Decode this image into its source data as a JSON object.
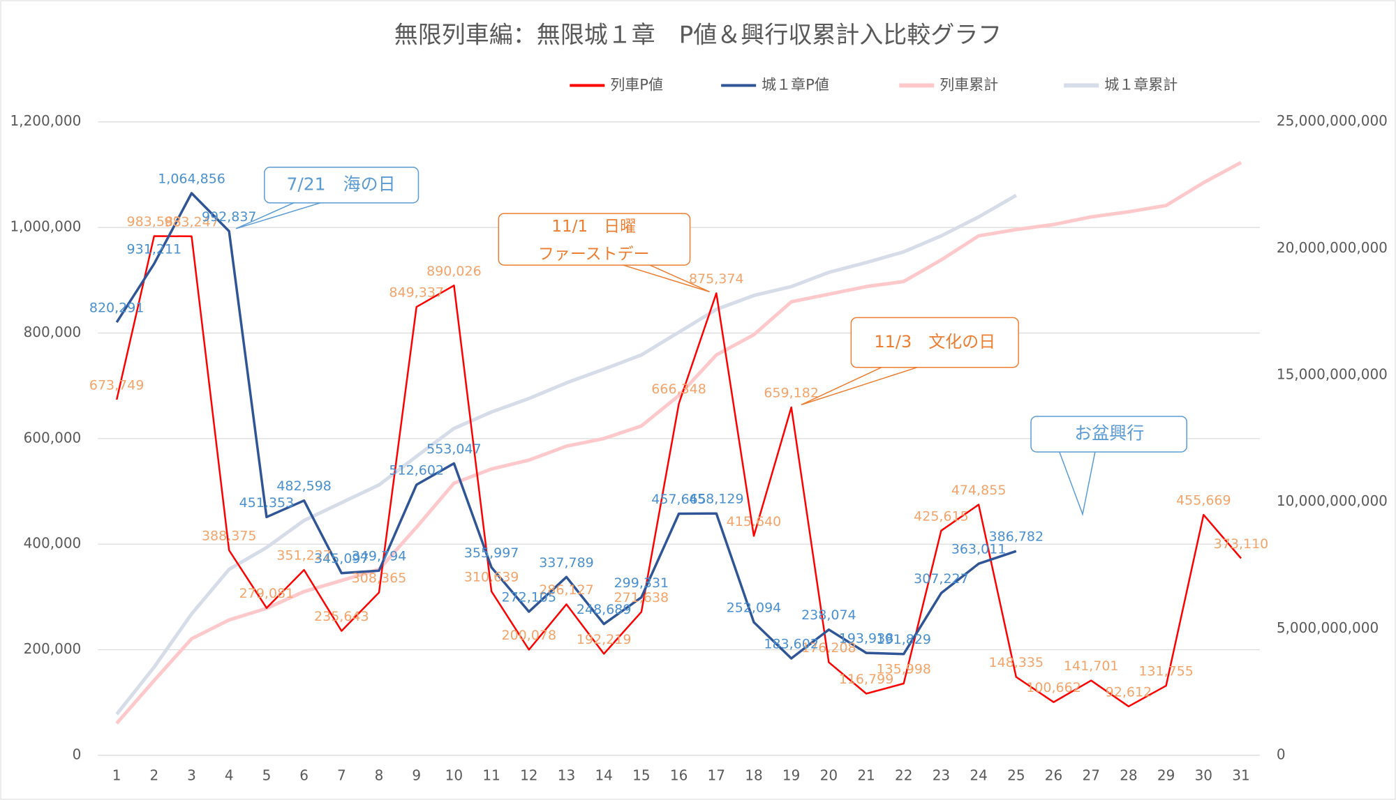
{
  "chart_data": {
    "type": "line",
    "title": "無限列車編：無限城１章　P値＆興行収累計入比較グラフ",
    "categories": [
      "1",
      "2",
      "3",
      "4",
      "5",
      "6",
      "7",
      "8",
      "9",
      "10",
      "11",
      "12",
      "13",
      "14",
      "15",
      "16",
      "17",
      "18",
      "19",
      "20",
      "21",
      "22",
      "23",
      "24",
      "25",
      "26",
      "27",
      "28",
      "29",
      "30",
      "31"
    ],
    "series": [
      {
        "name": "列車累計",
        "color": "#ffc9cc",
        "axis": "y2",
        "values": [
          1260000000,
          2950000000,
          4600000000,
          5340000000,
          5800000000,
          6460000000,
          6900000000,
          7340000000,
          9000000000,
          10740000000,
          11300000000,
          11650000000,
          12200000000,
          12500000000,
          13000000000,
          14200000000,
          15800000000,
          16600000000,
          17900000000,
          18200000000,
          18500000000,
          18700000000,
          19550000000,
          20500000000,
          20750000000,
          20950000000,
          21250000000,
          21450000000,
          21700000000,
          22600000000,
          23400000000
        ]
      },
      {
        "name": "城１章累計",
        "color": "#d6dce8",
        "axis": "y2",
        "values": [
          1620000000,
          3480000000,
          5580000000,
          7340000000,
          8200000000,
          9270000000,
          9970000000,
          10670000000,
          11800000000,
          12900000000,
          13550000000,
          14080000000,
          14700000000,
          15240000000,
          15800000000,
          16700000000,
          17600000000,
          18150000000,
          18500000000,
          19060000000,
          19450000000,
          19870000000,
          20500000000,
          21250000000,
          22100000000,
          null,
          null,
          null,
          null,
          null,
          null
        ]
      },
      {
        "name": "列車P値",
        "color": "#ff0000",
        "label_color": "#f4a46a",
        "values": [
          673749,
          983583,
          983247,
          388375,
          279081,
          351227,
          235643,
          308365,
          849337,
          890026,
          310639,
          200078,
          286127,
          192219,
          271638,
          666348,
          875374,
          415640,
          659182,
          176208,
          116799,
          135998,
          425615,
          474855,
          148335,
          100662,
          141701,
          92612,
          131755,
          455669,
          373110
        ],
        "value_labels": [
          "673,749",
          "983,583",
          "983,247",
          "388,375",
          "279,081",
          "351,227",
          "235,643",
          "308,365",
          "849,337",
          "890,026",
          "310,639",
          "200,078",
          "286,127",
          "192,219",
          "271,638",
          "666,348",
          "875,374",
          "415,640",
          "659,182",
          "176,208",
          "116,799",
          "135,998",
          "425,615",
          "474,855",
          "148,335",
          "100,662",
          "141,701",
          "92,612",
          "131,755",
          "455,669",
          "373,110"
        ]
      },
      {
        "name": "城１章P値",
        "color": "#2f5597",
        "label_color": "#4a90d0",
        "values": [
          820291,
          931211,
          1064856,
          992837,
          451353,
          482598,
          345097,
          349794,
          512602,
          553047,
          355997,
          272105,
          337789,
          248689,
          299331,
          457665,
          458129,
          252094,
          183602,
          238074,
          193938,
          191829,
          307227,
          363011,
          386782,
          null,
          null,
          null,
          null,
          null,
          null
        ],
        "value_labels": [
          "820,291",
          "931,211",
          "1,064,856",
          "992,837",
          "451,353",
          "482,598",
          "345,097",
          "349,794",
          "512,602",
          "553,047",
          "355,997",
          "272,105",
          "337,789",
          "248,689",
          "299,331",
          "457,665",
          "458,129",
          "252,094",
          "183,602",
          "238,074",
          "193,938",
          "191,829",
          "307,227",
          "363,011",
          "386,782",
          null,
          null,
          null,
          null,
          null,
          null
        ]
      }
    ],
    "ylim": [
      0,
      1200000
    ],
    "yticks": [
      0,
      {
        "value": 200000,
        "label": "200,000"
      },
      {
        "value": 400000,
        "label": "400,000"
      },
      {
        "value": 600000,
        "label": "600,000"
      },
      {
        "value": 800000,
        "label": "800,000"
      },
      {
        "value": 1000000,
        "label": "1,000,000"
      },
      {
        "value": 1200000,
        "label": "1,200,000"
      }
    ],
    "y2lim": [
      0,
      25000000000
    ],
    "y2ticks": [
      0,
      {
        "value": 5000000000,
        "label": "5,000,000,000"
      },
      {
        "value": 10000000000,
        "label": "10,000,000,000"
      },
      {
        "value": 15000000000,
        "label": "15,000,000,000"
      },
      {
        "value": 20000000000,
        "label": "20,000,000,000"
      },
      {
        "value": 25000000000,
        "label": "25,000,000,000"
      }
    ],
    "grid": true,
    "legend": "top",
    "annotations": [
      {
        "text": "7/21　海の日",
        "color": "#5b9bd5"
      },
      {
        "text": "11/1　日曜",
        "color": "#ed7d31"
      },
      {
        "text": "ファーストデー",
        "color": "#ed7d31"
      },
      {
        "text": "11/3　文化の日",
        "color": "#ed7d31"
      },
      {
        "text": "お盆興行",
        "color": "#5b9bd5"
      }
    ]
  }
}
